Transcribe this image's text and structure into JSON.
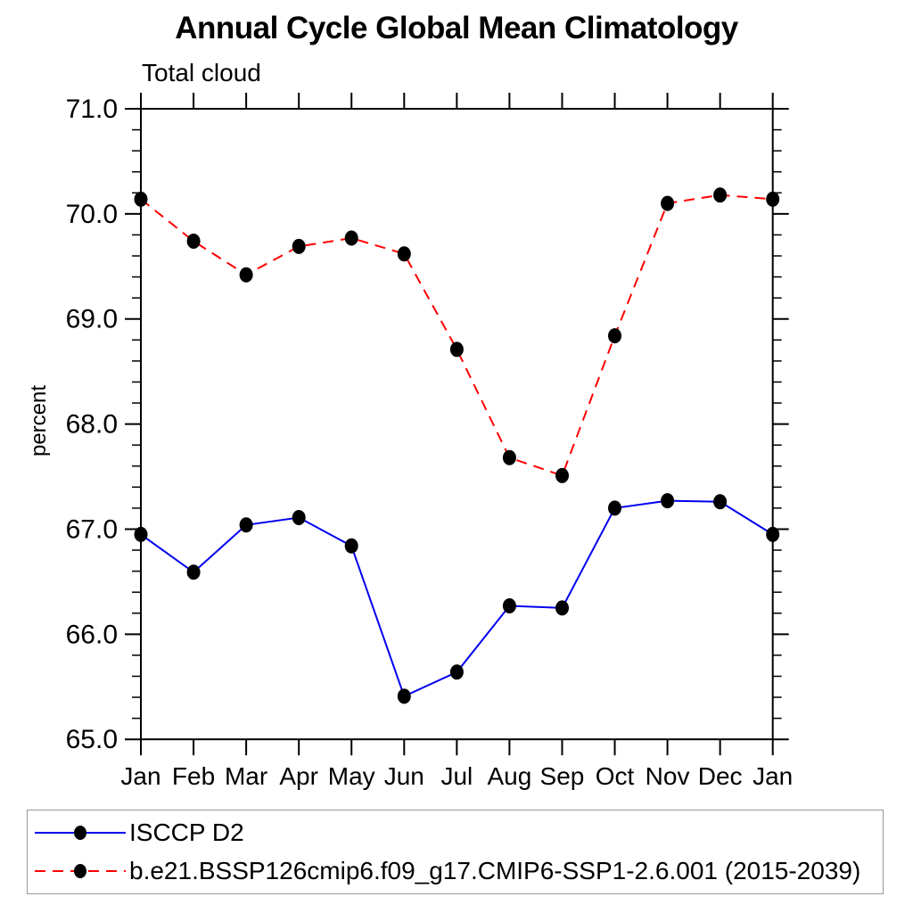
{
  "chart": {
    "title": "Annual Cycle Global Mean Climatology",
    "subtitle": "Total cloud",
    "ylabel": "percent"
  },
  "chart_data": {
    "type": "line",
    "title": "Annual Cycle Global Mean Climatology",
    "subtitle": "Total cloud",
    "xlabel": "",
    "ylabel": "percent",
    "categories": [
      "Jan",
      "Feb",
      "Mar",
      "Apr",
      "May",
      "Jun",
      "Jul",
      "Aug",
      "Sep",
      "Oct",
      "Nov",
      "Dec",
      "Jan"
    ],
    "ylim": [
      65.0,
      71.0
    ],
    "y_major_ticks": [
      "65.0",
      "66.0",
      "67.0",
      "68.0",
      "69.0",
      "70.0",
      "71.0"
    ],
    "y_minor_step": 0.2,
    "grid": false,
    "legend_position": "bottom",
    "series": [
      {
        "name": "ISCCP D2",
        "color": "#0000ee",
        "line_style": "solid",
        "marker": "filled-circle",
        "marker_color": "#000000",
        "values": [
          66.95,
          66.59,
          67.04,
          67.11,
          66.84,
          65.41,
          65.64,
          66.27,
          66.25,
          67.2,
          67.27,
          67.26,
          66.95
        ]
      },
      {
        "name": "b.e21.BSSP126cmip6.f09_g17.CMIP6-SSP1-2.6.001 (2015-2039)",
        "color": "#ff0000",
        "line_style": "dashed",
        "marker": "filled-circle",
        "marker_color": "#000000",
        "values": [
          70.14,
          69.74,
          69.42,
          69.69,
          69.77,
          69.62,
          68.71,
          67.68,
          67.51,
          68.84,
          70.1,
          70.18,
          70.14
        ]
      }
    ],
    "colors": {
      "axis": "#000000",
      "background": "#ffffff",
      "legend_border": "#999999"
    }
  }
}
